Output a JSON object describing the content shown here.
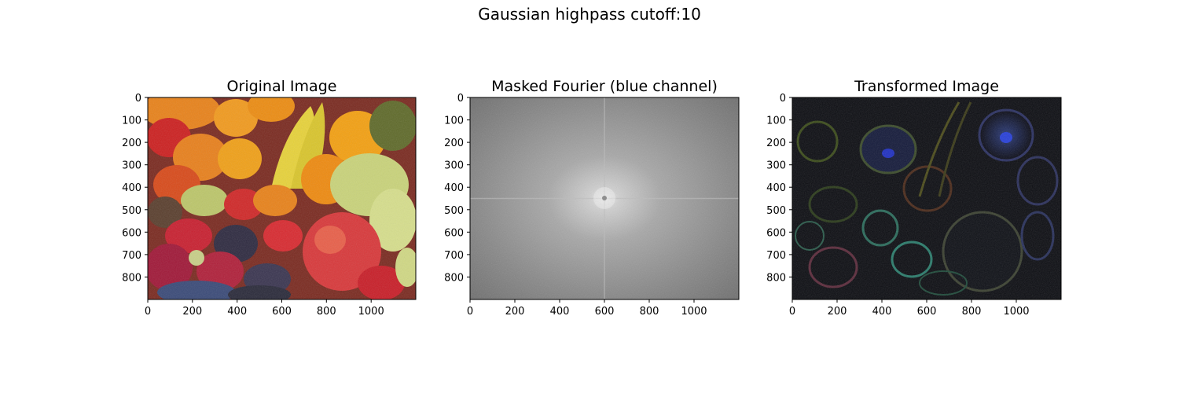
{
  "figure": {
    "suptitle": "Gaussian highpass cutoff:10"
  },
  "chart_data": [
    {
      "type": "image",
      "title": "Original Image",
      "content": "fruit-photo",
      "xticks": [
        0,
        200,
        400,
        600,
        800,
        1000
      ],
      "yticks": [
        0,
        100,
        200,
        300,
        400,
        500,
        600,
        700,
        800
      ],
      "xlim": [
        0,
        1200
      ],
      "ylim": [
        900,
        0
      ],
      "grid": false
    },
    {
      "type": "image",
      "title": "Masked Fourier (blue channel)",
      "content": "fourier-spectrum",
      "xticks": [
        0,
        200,
        400,
        600,
        800,
        1000
      ],
      "yticks": [
        0,
        100,
        200,
        300,
        400,
        500,
        600,
        700,
        800
      ],
      "xlim": [
        0,
        1200
      ],
      "ylim": [
        900,
        0
      ],
      "grid": false
    },
    {
      "type": "image",
      "title": "Transformed Image",
      "content": "highpass-filtered",
      "xticks": [
        0,
        200,
        400,
        600,
        800,
        1000
      ],
      "yticks": [
        0,
        100,
        200,
        300,
        400,
        500,
        600,
        700,
        800
      ],
      "xlim": [
        0,
        1200
      ],
      "ylim": [
        900,
        0
      ],
      "grid": false
    }
  ]
}
